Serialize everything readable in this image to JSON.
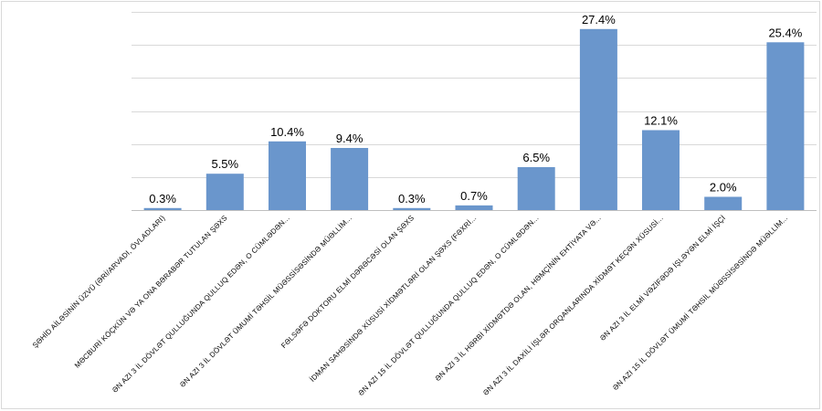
{
  "chart_data": {
    "type": "bar",
    "categories": [
      "ŞƏHİD AİLƏSİNİN ÜZVÜ (ƏRİ/ARVADI, ÖVLADLARI)",
      "MƏCBURİ KÖÇKÜN VƏ YA ONA BƏRABƏR TUTULAN ŞƏXS",
      "ƏN AZI 3 İL DÖVLƏT QULLUĞUNDA QULLUQ EDƏN, O CÜMLƏDƏN...",
      "ƏN AZI 3 İL DÖVLƏT ÜMUMİ TƏHSİL MÜƏSSİSƏSİNDƏ MÜƏLLİM...",
      "FƏLSƏFƏ DOKTORU ELMİ DƏRƏCƏSİ OLAN ŞƏXS",
      "İDMAN SAHƏSİNDƏ XÜSUSİ XİDMƏTLƏRİ OLAN ŞƏXS (FƏXRİ...",
      "ƏN AZI 15 İL DÖVLƏT QULLUĞUNDA QULLUQ EDƏN, O CÜMLƏDƏN...",
      "ƏN AZI 3 İL HƏRBİ XİDMƏTDƏ OLAN, HƏMÇİNİN EHTİYATA VƏ...",
      "ƏN AZI 3 İL DAXİLİ İŞLƏR ORQANLARINDA XİDMƏT KEÇƏN XÜSUSİ...",
      "ƏN AZI 3 İL ELMİ VƏZİFƏDƏ İŞLƏYƏN ELMİ İŞÇİ",
      "ƏN AZI 15 İL DÖVLƏT ÜMUMİ TƏHSİL MÜƏSSİSƏSİNDƏ MÜƏLLİM..."
    ],
    "values": [
      0.3,
      5.5,
      10.4,
      9.4,
      0.3,
      0.7,
      6.5,
      27.4,
      12.1,
      2.0,
      25.4
    ],
    "data_labels": [
      "0.3%",
      "5.5%",
      "10.4%",
      "9.4%",
      "0.3%",
      "0.7%",
      "6.5%",
      "27.4%",
      "12.1%",
      "2.0%",
      "25.4%"
    ],
    "title": "",
    "xlabel": "",
    "ylabel": "",
    "ylim": [
      0,
      30
    ],
    "y_gridlines": [
      0,
      5,
      10,
      15,
      20,
      25,
      30
    ],
    "y_tick_labels_visible": false,
    "grid": true,
    "legend": "none",
    "bar_color": "#6a96cc",
    "grid_color": "#d9d9d9"
  }
}
